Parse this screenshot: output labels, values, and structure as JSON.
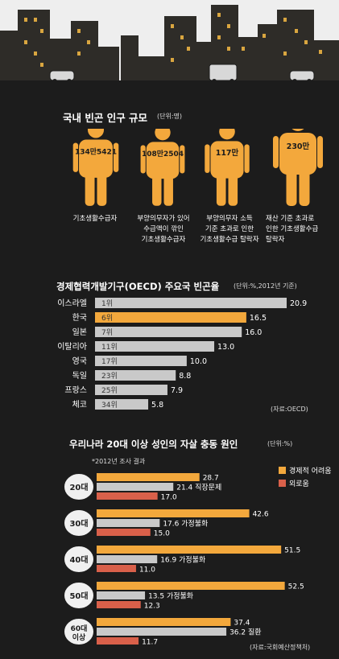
{
  "section1": {
    "title": "국내 빈곤 인구 규모",
    "unit": "(단위:명)",
    "people": [
      {
        "count": "134만5421",
        "value": 1345421,
        "lines": [
          "기초생활수급자"
        ]
      },
      {
        "count": "108만2504",
        "value": 1082504,
        "lines": [
          "부양의무자가 있어",
          "수급액이 깎인",
          "기초생활수급자"
        ]
      },
      {
        "count": "117만",
        "value": 1170000,
        "lines": [
          "부양의무자 소득",
          "기준 초과로 인한",
          "기초생활수급 탈락자"
        ]
      },
      {
        "count": "230만",
        "value": 2300000,
        "lines": [
          "재산 기준 초과로",
          "인한 기초생활수급",
          "탈락자"
        ]
      }
    ]
  },
  "section2": {
    "title": "경제협력개발기구(OECD) 주요국 빈곤율",
    "unit": "(단위:%,2012년 기준)",
    "source": "(자료:OECD)"
  },
  "section3": {
    "title": "우리나라 20대 이상 성인의 자살 충동 원인",
    "unit": "(단위:%)",
    "note": "*2012년 조사 결과",
    "source": "(자료:국회예산정책처)"
  },
  "colors": {
    "orange": "#f3a83c",
    "gray": "#c9c9c9",
    "red": "#d9604a",
    "background": "#1c1c1c"
  },
  "chart_data": [
    {
      "type": "bar",
      "orientation": "horizontal",
      "title": "경제협력개발기구(OECD) 주요국 빈곤율",
      "unit": "(단위:%,2012년 기준)",
      "categories": [
        "이스라엘",
        "한국",
        "일본",
        "이탈리아",
        "영국",
        "독일",
        "프랑스",
        "체코"
      ],
      "ranks": [
        "1위",
        "6위",
        "7위",
        "11위",
        "17위",
        "23위",
        "25위",
        "34위"
      ],
      "values": [
        20.9,
        16.5,
        16.0,
        13.0,
        10.0,
        8.8,
        7.9,
        5.8
      ],
      "value_labels": [
        "20.9",
        "16.5",
        "16.0",
        "13.0",
        "10.0",
        "8.8",
        "7.9",
        "5.8"
      ],
      "highlight": "한국",
      "source": "(자료:OECD)"
    },
    {
      "type": "bar",
      "orientation": "horizontal",
      "title": "우리나라 20대 이상 성인의 자살 충동 원인",
      "unit": "(단위:%)",
      "note": "*2012년 조사 결과",
      "categories": [
        "20대",
        "30대",
        "40대",
        "50대",
        "60대 이상"
      ],
      "series": [
        {
          "name": "경제적 어려움",
          "color": "#f3a83c",
          "values": [
            28.7,
            42.6,
            51.5,
            52.5,
            37.4
          ]
        },
        {
          "name": "",
          "color": "#c9c9c9",
          "values": [
            21.4,
            17.6,
            16.9,
            13.5,
            36.2
          ]
        },
        {
          "name": "외로움",
          "color": "#d9604a",
          "values": [
            17.0,
            15.0,
            11.0,
            12.3,
            11.7
          ]
        }
      ],
      "value_labels": [
        [
          "28.7",
          "21.4",
          "17.0"
        ],
        [
          "42.6",
          "17.6",
          "15.0"
        ],
        [
          "51.5",
          "16.9",
          "11.0"
        ],
        [
          "52.5",
          "13.5",
          "12.3"
        ],
        [
          "37.4",
          "36.2",
          "11.7"
        ]
      ],
      "second_bar_cause": [
        "직장문제",
        "가정불화",
        "가정불화",
        "가정불화",
        "질환"
      ],
      "legend": [
        "경제적 어려움",
        "외로움"
      ],
      "legend_position": "top-right",
      "source": "(자료:국회예산정책처)"
    }
  ]
}
